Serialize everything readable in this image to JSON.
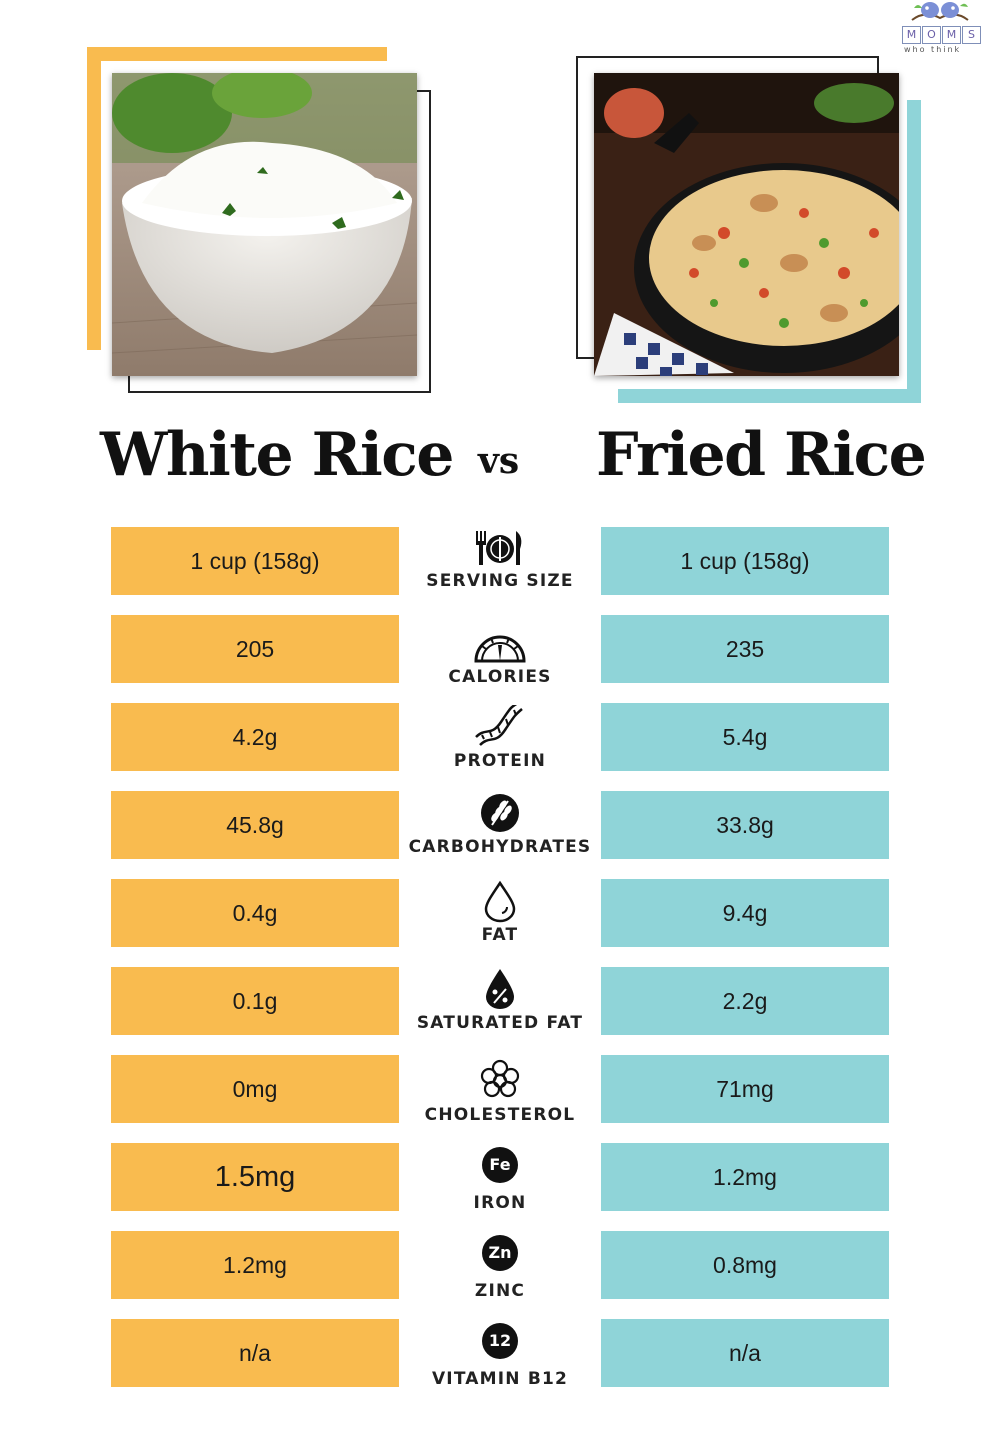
{
  "logo": {
    "letters": [
      "M",
      "O",
      "M",
      "S"
    ],
    "subtitle": "who think"
  },
  "headings": {
    "left": "White Rice",
    "vs": "vs",
    "right": "Fried Rice"
  },
  "colors": {
    "left_accent": "#f9bb4f",
    "right_accent": "#8fd4d8"
  },
  "rows": [
    {
      "label": "SERVING SIZE",
      "icon": "utensils-plate-icon",
      "left": "1 cup (158g)",
      "right": "1 cup (158g)"
    },
    {
      "label": "CALORIES",
      "icon": "gauge-icon",
      "left": "205",
      "right": "235"
    },
    {
      "label": "PROTEIN",
      "icon": "dna-icon",
      "left": "4.2g",
      "right": "5.4g"
    },
    {
      "label": "CARBOHYDRATES",
      "icon": "wheat-icon",
      "left": "45.8g",
      "right": "33.8g"
    },
    {
      "label": "FAT",
      "icon": "drop-icon",
      "left": "0.4g",
      "right": "9.4g"
    },
    {
      "label": "SATURATED FAT",
      "icon": "percent-drop-icon",
      "left": "0.1g",
      "right": "2.2g"
    },
    {
      "label": "CHOLESTEROL",
      "icon": "molecule-icon",
      "left": "0mg",
      "right": "71mg"
    },
    {
      "label": "IRON",
      "icon": "fe-badge-icon",
      "badge": "Fe",
      "left": "1.5mg",
      "right": "1.2mg"
    },
    {
      "label": "ZINC",
      "icon": "zn-badge-icon",
      "badge": "Zn",
      "left": "1.2mg",
      "right": "0.8mg"
    },
    {
      "label": "VITAMIN B12",
      "icon": "b12-badge-icon",
      "badge": "12",
      "left": "n/a",
      "right": "n/a"
    }
  ]
}
